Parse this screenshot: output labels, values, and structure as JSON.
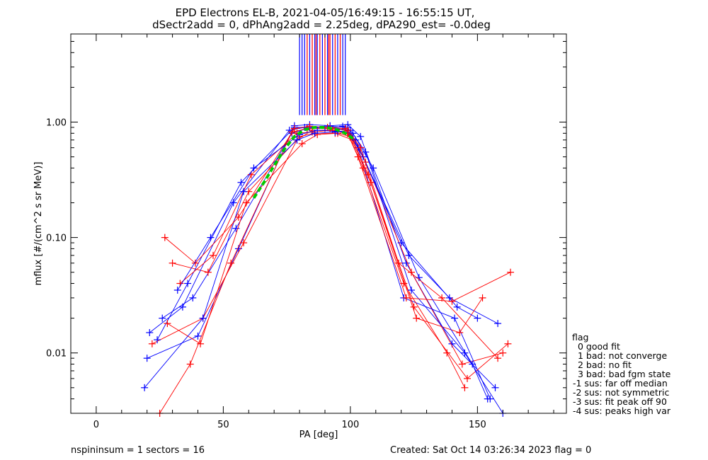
{
  "title_line1": "EPD Electrons EL-B, 2021-04-05/16:49:15 - 16:55:15 UT,",
  "title_line2": "dSectr2add = 0, dPhAng2add = 2.25deg, dPA290_est=  -0.0deg",
  "legend": {
    "title": "flag",
    "items": [
      "0 good fit",
      "1 bad: not converge",
      "2 bad: no fit",
      "3 bad: bad fgm state",
      "-1 sus: far off median",
      "-2 sus: not symmetric",
      "-3 sus: fit peak off 90",
      "-4 sus: peaks high var"
    ]
  },
  "footer": {
    "left": "nspininsum =  1  sectors = 16",
    "right": "Created: Sat Oct 14 03:26:34 2023   flag = 0"
  },
  "colors": {
    "series_a": "#0000ff",
    "series_b": "#ff0000",
    "fit": "#00cc00",
    "axis": "#000000"
  },
  "chart_data": {
    "type": "line",
    "xlabel": "PA [deg]",
    "ylabel": "mflux [#/(cm^2 s sr MeV)]",
    "xlim": [
      -10,
      185
    ],
    "ylim": [
      0.003,
      5.8
    ],
    "yscale": "log",
    "xticks": [
      0,
      50,
      100,
      150
    ],
    "xtick_labels": [
      "0",
      "50",
      "100",
      "150"
    ],
    "yticks": [
      0.01,
      0.1,
      1.0
    ],
    "ytick_labels": [
      "0.01",
      "0.10",
      "1.00"
    ],
    "grid": false,
    "legend_position": "outside-right",
    "series": [
      {
        "color": "blue",
        "x": [
          20,
          40,
          56,
          78,
          84,
          92,
          99,
          104,
          122,
          140,
          157
        ],
        "y": [
          0.009,
          0.014,
          0.08,
          0.93,
          0.95,
          0.93,
          0.95,
          0.75,
          0.06,
          0.012,
          0.005
        ]
      },
      {
        "color": "red",
        "x": [
          22,
          42,
          58,
          79,
          85,
          93,
          100,
          106,
          124,
          144,
          160
        ],
        "y": [
          0.012,
          0.02,
          0.09,
          0.7,
          0.85,
          0.85,
          0.78,
          0.45,
          0.05,
          0.008,
          0.01
        ]
      },
      {
        "color": "blue",
        "x": [
          26,
          38,
          55,
          77,
          83,
          91,
          98,
          103,
          121,
          141,
          155
        ],
        "y": [
          0.02,
          0.03,
          0.12,
          0.8,
          0.88,
          0.9,
          0.86,
          0.6,
          0.03,
          0.02,
          0.004
        ]
      },
      {
        "color": "red",
        "x": [
          30,
          44,
          60,
          80,
          86,
          94,
          101,
          107,
          125,
          146,
          162
        ],
        "y": [
          0.06,
          0.05,
          0.25,
          0.75,
          0.8,
          0.8,
          0.7,
          0.35,
          0.025,
          0.006,
          0.012
        ]
      },
      {
        "color": "blue",
        "x": [
          24,
          36,
          57,
          78,
          84,
          92,
          99,
          105,
          123,
          139,
          158
        ],
        "y": [
          0.013,
          0.04,
          0.3,
          0.9,
          0.9,
          0.92,
          0.9,
          0.5,
          0.07,
          0.03,
          0.018
        ]
      },
      {
        "color": "red",
        "x": [
          28,
          41,
          59,
          81,
          87,
          95,
          100,
          108,
          126,
          143,
          152
        ],
        "y": [
          0.018,
          0.012,
          0.2,
          0.65,
          0.78,
          0.8,
          0.75,
          0.3,
          0.02,
          0.015,
          0.03
        ]
      },
      {
        "color": "blue",
        "x": [
          21,
          34,
          54,
          76,
          82,
          90,
          97,
          102,
          120,
          142,
          150
        ],
        "y": [
          0.015,
          0.025,
          0.2,
          0.85,
          0.9,
          0.88,
          0.92,
          0.7,
          0.09,
          0.025,
          0.02
        ]
      },
      {
        "color": "red",
        "x": [
          33,
          46,
          61,
          79,
          85,
          93,
          99,
          105,
          121,
          138,
          145
        ],
        "y": [
          0.04,
          0.07,
          0.35,
          0.8,
          0.82,
          0.85,
          0.8,
          0.4,
          0.04,
          0.01,
          0.005
        ]
      },
      {
        "color": "blue",
        "x": [
          19,
          42,
          58,
          79,
          86,
          94,
          100,
          106,
          124,
          145,
          160
        ],
        "y": [
          0.005,
          0.02,
          0.25,
          0.7,
          0.8,
          0.82,
          0.85,
          0.55,
          0.035,
          0.01,
          0.003
        ]
      },
      {
        "color": "red",
        "x": [
          27,
          39,
          56,
          78,
          84,
          91,
          98,
          103,
          122,
          140,
          163
        ],
        "y": [
          0.1,
          0.06,
          0.15,
          0.88,
          0.92,
          0.9,
          0.88,
          0.5,
          0.03,
          0.028,
          0.05
        ]
      },
      {
        "color": "blue",
        "x": [
          32,
          45,
          62,
          80,
          87,
          95,
          101,
          109,
          127,
          148,
          154
        ],
        "y": [
          0.035,
          0.1,
          0.4,
          0.78,
          0.85,
          0.83,
          0.8,
          0.4,
          0.045,
          0.008,
          0.004
        ]
      },
      {
        "color": "red",
        "x": [
          25,
          37,
          53,
          77,
          83,
          92,
          99,
          104,
          119,
          136,
          158
        ],
        "y": [
          0.003,
          0.008,
          0.06,
          0.82,
          0.88,
          0.88,
          0.85,
          0.6,
          0.06,
          0.03,
          0.009
        ]
      }
    ],
    "fit_curve": {
      "color": "green",
      "style": "dashed",
      "x": [
        62,
        66,
        70,
        74,
        78,
        82,
        86,
        90,
        94,
        98,
        101
      ],
      "y": [
        0.22,
        0.3,
        0.42,
        0.58,
        0.75,
        0.86,
        0.9,
        0.9,
        0.87,
        0.8,
        0.72
      ]
    },
    "peak_markers": {
      "x": [
        80,
        81,
        82,
        83,
        84,
        85,
        86,
        86.5,
        87,
        88,
        89,
        90,
        91,
        91.5,
        92,
        93,
        94,
        95,
        96,
        97,
        98
      ],
      "colors": [
        "blue",
        "blue",
        "blue",
        "red",
        "blue",
        "red",
        "blue",
        "red",
        "blue",
        "red",
        "blue",
        "red",
        "blue",
        "red",
        "red",
        "blue",
        "red",
        "blue",
        "red",
        "blue",
        "blue"
      ],
      "y_range": [
        1.15,
        5.8
      ]
    }
  }
}
